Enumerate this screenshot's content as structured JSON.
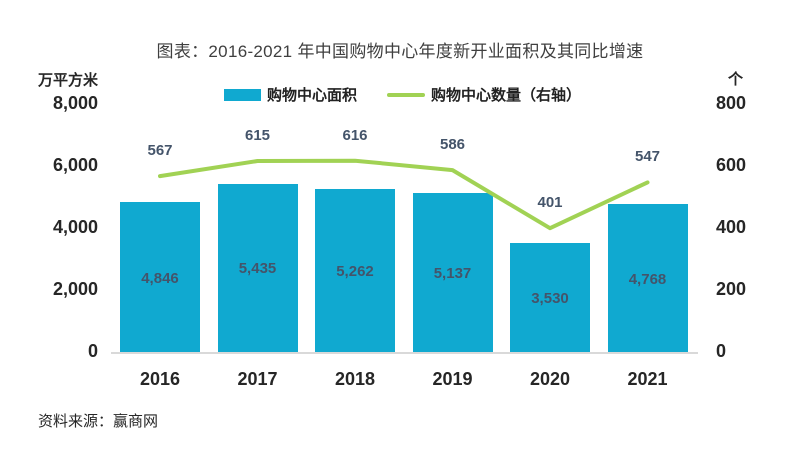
{
  "title": "图表：2016-2021 年中国购物中心年度新开业面积及其同比增速",
  "legend": {
    "area_label": "购物中心面积",
    "count_label": "购物中心数量（右轴）"
  },
  "left_axis": {
    "unit": "万平方米",
    "ticks": [
      "8,000",
      "6,000",
      "4,000",
      "2,000",
      "0"
    ],
    "max": 8000
  },
  "right_axis": {
    "unit": "个",
    "ticks": [
      "800",
      "600",
      "400",
      "200",
      "0"
    ],
    "max": 800
  },
  "source_note": "资料来源：赢商网",
  "colors": {
    "bar": "#10a9d0",
    "line": "#a1d254",
    "data_label": "#44546a",
    "axis_line": "#d9d9d9"
  },
  "chart_data": {
    "type": "bar",
    "subtype": "bar-and-line-combo",
    "categories": [
      "2016",
      "2017",
      "2018",
      "2019",
      "2020",
      "2021"
    ],
    "series": [
      {
        "name": "购物中心面积",
        "type": "bar",
        "axis": "left",
        "values": [
          4846,
          5435,
          5262,
          5137,
          3530,
          4768
        ],
        "labels": [
          "4,846",
          "5,435",
          "5,262",
          "5,137",
          "3,530",
          "4,768"
        ]
      },
      {
        "name": "购物中心数量（右轴）",
        "type": "line",
        "axis": "right",
        "values": [
          567,
          615,
          616,
          586,
          401,
          547
        ],
        "labels": [
          "567",
          "615",
          "616",
          "586",
          "401",
          "547"
        ]
      }
    ],
    "title": "图表：2016-2021 年中国购物中心年度新开业面积及其同比增速",
    "xlabel": "",
    "ylabel_left": "万平方米",
    "ylabel_right": "个",
    "left_ylim": [
      0,
      8000
    ],
    "right_ylim": [
      0,
      800
    ],
    "grid": false,
    "legend_position": "top"
  }
}
